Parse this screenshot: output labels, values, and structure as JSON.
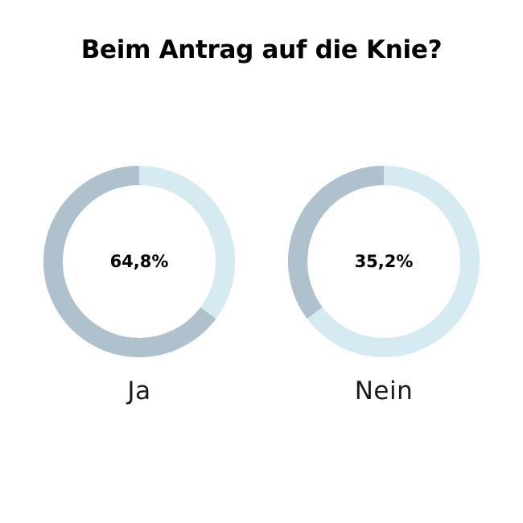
{
  "chart_data": {
    "type": "pie",
    "title": "Beim Antrag auf die Knie?",
    "categories": [
      "Ja",
      "Nein"
    ],
    "values": [
      64.8,
      35.2
    ],
    "value_labels": [
      "64,8%",
      "35,2%"
    ],
    "variant": "donut",
    "colors": {
      "highlight": "#b0c1ce",
      "remainder": "#d5eaf1"
    }
  }
}
